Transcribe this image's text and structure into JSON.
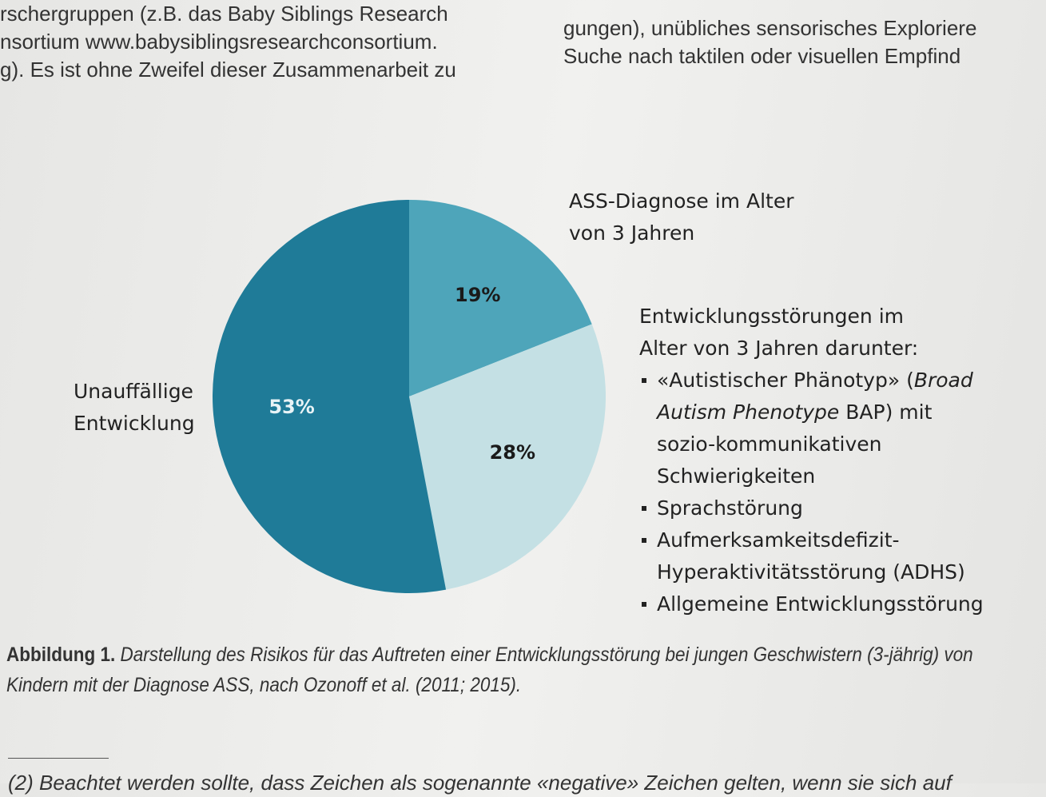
{
  "page_text": {
    "top_left_lines": [
      "rschergruppen (z.B. das Baby Siblings Research",
      "nsortium www.babysiblingsresearchconsortium.",
      "g). Es ist ohne Zweifel dieser Zusammenarbeit zu"
    ],
    "top_right_lines": [
      "gungen), unübliches sensorisches Exploriere",
      "Suche nach taktilen oder visuellen Empfind"
    ],
    "caption_label": "Abbildung 1.",
    "caption_text": "Darstellung des Risikos für das Auftreten einer Entwicklungsstörung bei jungen Geschwistern (3-jährig) von Kindern mit der Diagnose ASS, nach Ozonoff et al. (2011; 2015).",
    "footnote": "(2) Beachtet werden sollte, dass Zeichen als sogenannte «negative» Zeichen gelten, wenn sie sich auf"
  },
  "chart_data": {
    "type": "pie",
    "categories": [
      "ASS-Diagnose im Alter von 3 Jahren",
      "Entwicklungsstörungen im Alter von 3 Jahren darunter:",
      "Unauffällige Entwicklung"
    ],
    "values": [
      19,
      28,
      53
    ],
    "value_labels": [
      "19%",
      "28%",
      "53%"
    ],
    "colors": [
      "#4ea5ba",
      "#c4e0e4",
      "#1f7b98"
    ],
    "annotations": [
      [
        "«Autistischer Phänotyp» (",
        "Broad Autism Phenotype",
        " BAP) mit sozio-kommunikativen Schwierigkeiten"
      ],
      [
        "Sprachstörung"
      ],
      [
        "Aufmerksamkeitsdefizit-Hyperaktivitätsstörung (ADHS)"
      ],
      [
        "Allgemeine Entwicklungsstörung"
      ]
    ]
  }
}
